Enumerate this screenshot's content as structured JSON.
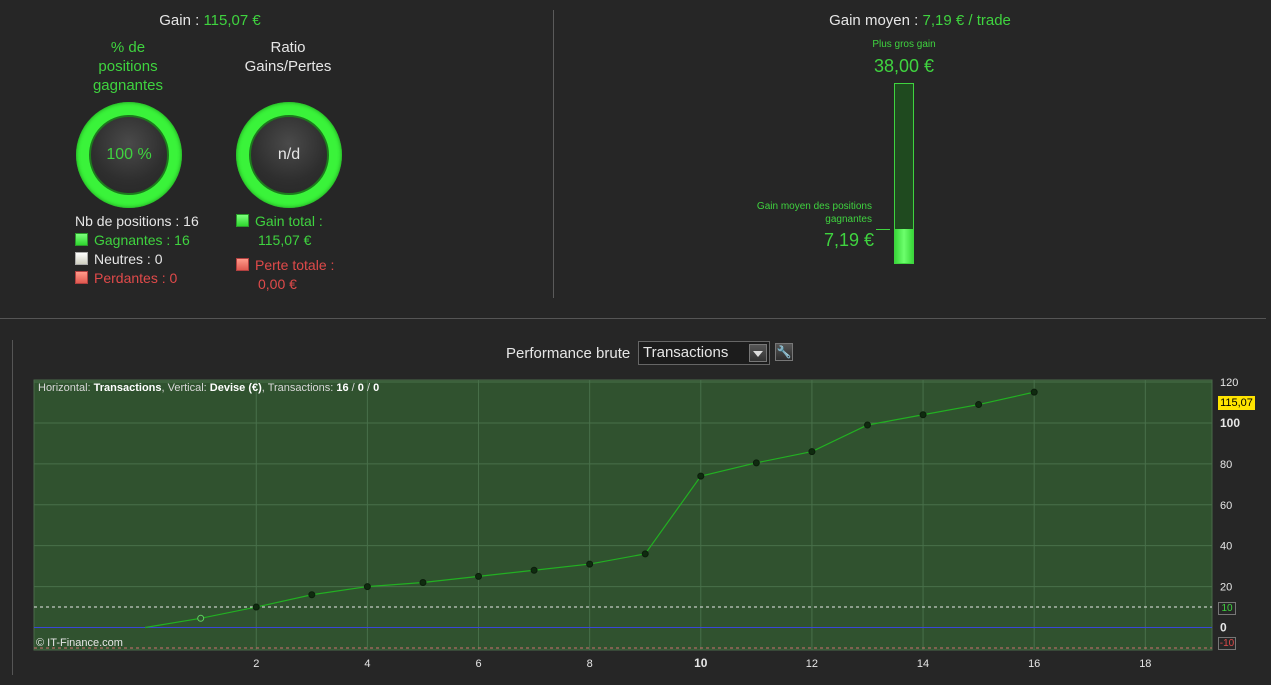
{
  "summary": {
    "gain_label": "Gain :",
    "gain_value": "115,07 €",
    "gain_moyen_label": "Gain moyen :",
    "gain_moyen_value": "7,19 € / trade"
  },
  "win_ring": {
    "title_line1": "% de",
    "title_line2": "positions",
    "title_line3": "gagnantes",
    "value": "100 %"
  },
  "ratio_ring": {
    "title_line1": "Ratio",
    "title_line2": "Gains/Pertes",
    "value": "n/d"
  },
  "positions": {
    "total_label": "Nb de positions : 16",
    "winners": "Gagnantes : 16",
    "neutral": "Neutres : 0",
    "losers": "Perdantes : 0"
  },
  "totals": {
    "gain_total_label": "Gain total :",
    "gain_total_value": "115,07 €",
    "perte_totale_label": "Perte totale :",
    "perte_totale_value": "0,00 €"
  },
  "gain_bar": {
    "max_label": "Plus gros gain",
    "max_value": "38,00 €",
    "avg_label_line1": "Gain moyen des positions",
    "avg_label_line2": "gagnantes",
    "avg_value": "7,19 €",
    "fill_fraction": 0.189
  },
  "toolbar": {
    "perf_label": "Performance brute",
    "select_value": "Transactions",
    "settings_icon": "wrench-icon"
  },
  "chart_info": {
    "horizontal_label": "Horizontal: ",
    "horizontal_value": "Transactions",
    "vertical_label": ", Vertical: ",
    "vertical_value": "Devise (€)",
    "transactions_label": ", Transactions: ",
    "tx_win": "16",
    "sep1": " / ",
    "tx_neutral": "0",
    "sep2": " / ",
    "tx_loss": "0",
    "copyright": "© IT-Finance.com",
    "last_value": "115,07",
    "tag_10": "10",
    "tag_neg10": "-10"
  },
  "colors": {
    "accent_green": "#3fd33f",
    "loss_red": "#e04a4a",
    "plot_bg": "#30522f",
    "last_value_tag": "#ffe400"
  },
  "chart_data": {
    "type": "line",
    "x": [
      0,
      1,
      2,
      3,
      4,
      5,
      6,
      7,
      8,
      9,
      10,
      11,
      12,
      13,
      14,
      15,
      16
    ],
    "y": [
      0,
      4.5,
      10,
      16,
      20,
      22,
      25,
      28,
      31,
      36,
      74,
      80.5,
      86,
      99,
      104,
      109,
      115.07
    ],
    "xlim": [
      -2,
      19.2
    ],
    "ylim": [
      -11,
      121
    ],
    "x_ticks": [
      "2",
      "4",
      "6",
      "8",
      "10",
      "12",
      "14",
      "16",
      "18"
    ],
    "y_ticks": [
      "120",
      "100",
      "80",
      "60",
      "40",
      "20",
      "0"
    ],
    "reference_lines": [
      10,
      0,
      -10
    ],
    "grid": true
  }
}
